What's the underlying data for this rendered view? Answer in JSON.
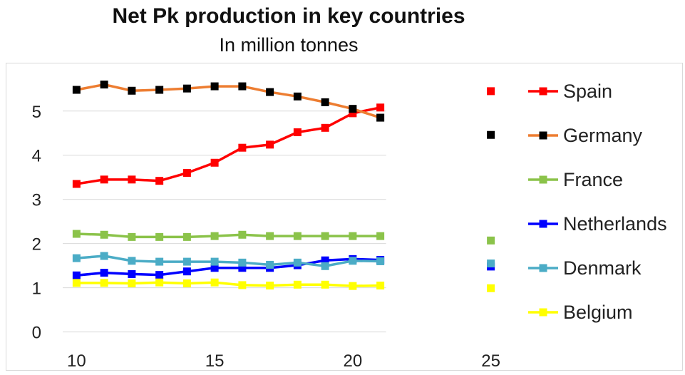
{
  "chart_data": {
    "type": "line",
    "title": "Net Pk production in key countries",
    "subtitle": "In million tonnes",
    "x": [
      10,
      11,
      12,
      13,
      14,
      15,
      16,
      17,
      18,
      19,
      20,
      21
    ],
    "xticks": [
      10,
      15,
      20,
      25
    ],
    "yticks": [
      0,
      1,
      2,
      3,
      4,
      5
    ],
    "xlim": [
      9.5,
      25.5
    ],
    "ylim": [
      -0.2,
      5.9
    ],
    "grid": "horizontal",
    "legend_position": "right",
    "series": [
      {
        "name": "Spain",
        "line_color": "#ff0000",
        "marker_color": "#ff0000",
        "values": [
          3.35,
          3.45,
          3.45,
          3.42,
          3.6,
          3.83,
          4.17,
          4.24,
          4.52,
          4.62,
          4.95,
          5.08
        ],
        "projection": {
          "x": 25,
          "y": 5.45,
          "color": "#ff0000"
        }
      },
      {
        "name": "Germany",
        "line_color": "#ed7d31",
        "marker_color": "#000000",
        "values": [
          5.48,
          5.6,
          5.46,
          5.48,
          5.51,
          5.56,
          5.56,
          5.43,
          5.33,
          5.2,
          5.05,
          4.85
        ],
        "projection": {
          "x": 25,
          "y": 4.46,
          "color": "#000000"
        }
      },
      {
        "name": "France",
        "line_color": "#8bc34a",
        "marker_color": "#8bc34a",
        "values": [
          2.22,
          2.2,
          2.15,
          2.15,
          2.15,
          2.17,
          2.2,
          2.17,
          2.17,
          2.17,
          2.17,
          2.17
        ],
        "projection": {
          "x": 25,
          "y": 2.07,
          "color": "#8bc34a"
        }
      },
      {
        "name": "Netherlands",
        "line_color": "#0000ff",
        "marker_color": "#0000ff",
        "values": [
          1.28,
          1.34,
          1.31,
          1.29,
          1.37,
          1.45,
          1.45,
          1.45,
          1.51,
          1.62,
          1.65,
          1.63
        ],
        "projection": {
          "x": 25,
          "y": 1.48,
          "color": "#0000ff"
        }
      },
      {
        "name": "Denmark",
        "line_color": "#4bacc6",
        "marker_color": "#4bacc6",
        "values": [
          1.67,
          1.72,
          1.61,
          1.59,
          1.59,
          1.59,
          1.57,
          1.52,
          1.57,
          1.49,
          1.61,
          1.6
        ],
        "projection": {
          "x": 25,
          "y": 1.55,
          "color": "#4bacc6"
        }
      },
      {
        "name": "Belgium",
        "line_color": "#ffff00",
        "marker_color": "#ffff00",
        "values": [
          1.11,
          1.11,
          1.1,
          1.12,
          1.1,
          1.12,
          1.06,
          1.05,
          1.07,
          1.07,
          1.04,
          1.05
        ],
        "projection": {
          "x": 25,
          "y": 0.99,
          "color": "#ffff00"
        }
      }
    ]
  }
}
